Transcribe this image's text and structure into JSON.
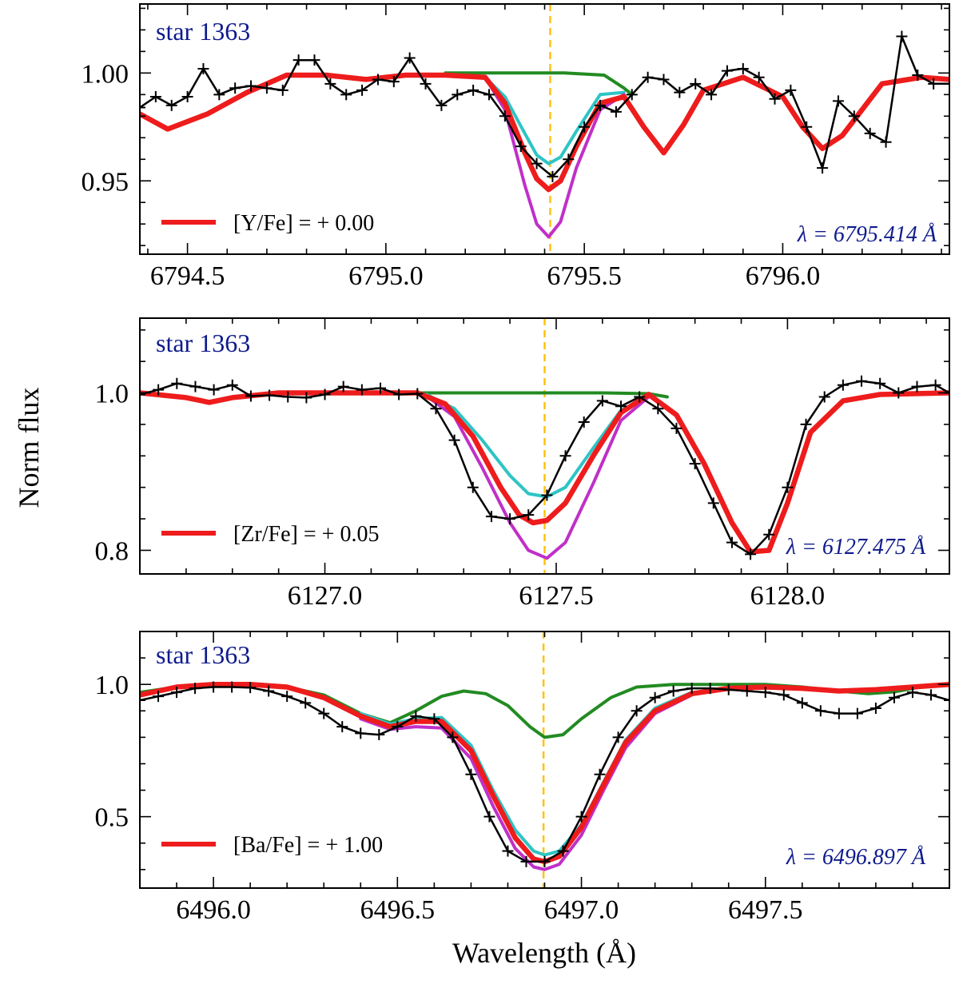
{
  "figure": {
    "ylabel": "Norm flux",
    "xlabel": "Wavelength (Å)"
  },
  "legend_colors": {
    "observed": "#000000",
    "best_fit": "#ee1c1c",
    "no_element": "#228b22",
    "lower": "#2ec4c4",
    "higher": "#c030c8",
    "line_marker": "#ffc20e"
  },
  "chart_data": [
    {
      "type": "line",
      "title": "star 1363",
      "element": "Y",
      "legend": "[Y/Fe] = + 0.00",
      "line_label": "λ = 6795.414 Å",
      "line_center": 6795.414,
      "xlim": [
        6794.38,
        6796.42
      ],
      "ylim": [
        0.916,
        1.032
      ],
      "xticks": [
        6794.5,
        6795.0,
        6795.5,
        6796.0
      ],
      "xtick_labels": [
        "6794.5",
        "6795.0",
        "6795.5",
        "6796.0"
      ],
      "yticks": [
        0.95,
        1.0
      ],
      "ytick_labels": [
        "0.95",
        "1.00"
      ],
      "series": [
        {
          "name": "observed",
          "x": [
            6794.38,
            6794.42,
            6794.46,
            6794.5,
            6794.54,
            6794.58,
            6794.62,
            6794.66,
            6794.7,
            6794.74,
            6794.78,
            6794.82,
            6794.86,
            6794.9,
            6794.94,
            6794.98,
            6795.02,
            6795.06,
            6795.1,
            6795.14,
            6795.18,
            6795.22,
            6795.26,
            6795.3,
            6795.34,
            6795.38,
            6795.42,
            6795.46,
            6795.5,
            6795.54,
            6795.58,
            6795.62,
            6795.66,
            6795.7,
            6795.74,
            6795.78,
            6795.82,
            6795.86,
            6795.9,
            6795.94,
            6795.98,
            6796.02,
            6796.06,
            6796.1,
            6796.14,
            6796.18,
            6796.22,
            6796.26,
            6796.3,
            6796.34,
            6796.38,
            6796.42
          ],
          "y": [
            0.984,
            0.989,
            0.985,
            0.989,
            1.002,
            0.99,
            0.993,
            0.994,
            0.993,
            0.992,
            1.006,
            1.006,
            0.995,
            0.99,
            0.992,
            0.997,
            0.996,
            1.007,
            0.995,
            0.985,
            0.99,
            0.992,
            0.99,
            0.98,
            0.966,
            0.958,
            0.952,
            0.96,
            0.975,
            0.985,
            0.982,
            0.99,
            0.998,
            0.997,
            0.991,
            0.995,
            0.99,
            1.001,
            1.002,
            0.998,
            0.988,
            0.992,
            0.975,
            0.956,
            0.987,
            0.98,
            0.972,
            0.968,
            1.017,
            0.999,
            0.995,
            0.995
          ]
        },
        {
          "name": "best_fit",
          "x": [
            6794.38,
            6794.45,
            6794.55,
            6794.65,
            6794.75,
            6794.85,
            6794.95,
            6795.05,
            6795.15,
            6795.25,
            6795.3,
            6795.35,
            6795.38,
            6795.41,
            6795.44,
            6795.48,
            6795.54,
            6795.6,
            6795.65,
            6795.7,
            6795.75,
            6795.8,
            6795.9,
            6796.0,
            6796.05,
            6796.1,
            6796.15,
            6796.25,
            6796.35,
            6796.42
          ],
          "y": [
            0.981,
            0.974,
            0.981,
            0.991,
            0.999,
            0.999,
            0.997,
            0.999,
            0.999,
            0.998,
            0.986,
            0.963,
            0.951,
            0.946,
            0.95,
            0.966,
            0.986,
            0.989,
            0.975,
            0.963,
            0.976,
            0.992,
            0.998,
            0.989,
            0.975,
            0.965,
            0.971,
            0.995,
            0.998,
            0.997
          ]
        },
        {
          "name": "no_element",
          "x": [
            6795.15,
            6795.25,
            6795.35,
            6795.45,
            6795.55,
            6795.6,
            6795.62
          ],
          "y": [
            1.0,
            1.0,
            1.0,
            1.0,
            0.999,
            0.993,
            0.99
          ]
        },
        {
          "name": "lower",
          "x": [
            6795.15,
            6795.25,
            6795.3,
            6795.35,
            6795.38,
            6795.41,
            6795.44,
            6795.48,
            6795.54,
            6795.6
          ],
          "y": [
            0.999,
            0.998,
            0.989,
            0.972,
            0.962,
            0.958,
            0.961,
            0.973,
            0.99,
            0.991
          ]
        },
        {
          "name": "higher",
          "x": [
            6795.15,
            6795.25,
            6795.3,
            6795.35,
            6795.38,
            6795.41,
            6795.44,
            6795.48,
            6795.54,
            6795.6
          ],
          "y": [
            0.999,
            0.998,
            0.983,
            0.948,
            0.93,
            0.924,
            0.931,
            0.956,
            0.983,
            0.99
          ]
        }
      ]
    },
    {
      "type": "line",
      "title": "star 1363",
      "element": "Zr",
      "legend": "[Zr/Fe] = + 0.05",
      "line_label": "λ = 6127.475 Å",
      "line_center": 6127.475,
      "xlim": [
        6126.6,
        6128.35
      ],
      "ylim": [
        0.77,
        1.095
      ],
      "xticks": [
        6127.0,
        6127.5,
        6128.0
      ],
      "xtick_labels": [
        "6127.0",
        "6127.5",
        "6128.0"
      ],
      "yticks": [
        0.8,
        1.0
      ],
      "ytick_labels": [
        "0.8",
        "1.0"
      ],
      "series": [
        {
          "name": "observed",
          "x": [
            6126.6,
            6126.64,
            6126.68,
            6126.72,
            6126.76,
            6126.8,
            6126.84,
            6126.88,
            6126.92,
            6126.96,
            6127.0,
            6127.04,
            6127.08,
            6127.12,
            6127.16,
            6127.2,
            6127.24,
            6127.28,
            6127.32,
            6127.36,
            6127.4,
            6127.44,
            6127.48,
            6127.52,
            6127.56,
            6127.6,
            6127.64,
            6127.68,
            6127.72,
            6127.76,
            6127.8,
            6127.84,
            6127.88,
            6127.92,
            6127.96,
            6128.0,
            6128.04,
            6128.08,
            6128.12,
            6128.16,
            6128.2,
            6128.24,
            6128.28,
            6128.32,
            6128.35
          ],
          "y": [
            0.998,
            1.004,
            1.012,
            1.008,
            1.004,
            1.01,
            0.996,
            0.997,
            0.995,
            0.994,
            0.998,
            1.008,
            1.004,
            1.006,
            0.998,
            0.999,
            0.98,
            0.94,
            0.88,
            0.843,
            0.84,
            0.845,
            0.87,
            0.92,
            0.963,
            0.99,
            0.983,
            0.995,
            0.98,
            0.955,
            0.91,
            0.86,
            0.81,
            0.795,
            0.82,
            0.88,
            0.96,
            0.995,
            1.01,
            1.015,
            1.012,
            1.0,
            1.008,
            1.01,
            1.0
          ]
        },
        {
          "name": "best_fit",
          "x": [
            6126.6,
            6126.7,
            6126.75,
            6126.8,
            6126.9,
            6127.0,
            6127.1,
            6127.2,
            6127.26,
            6127.32,
            6127.38,
            6127.42,
            6127.45,
            6127.48,
            6127.52,
            6127.58,
            6127.64,
            6127.7,
            6127.76,
            6127.82,
            6127.88,
            6127.92,
            6127.96,
            6128.0,
            6128.05,
            6128.12,
            6128.2,
            6128.35
          ],
          "y": [
            1.0,
            0.994,
            0.988,
            0.994,
            1.0,
            1.0,
            1.0,
            1.0,
            0.986,
            0.945,
            0.88,
            0.845,
            0.835,
            0.838,
            0.86,
            0.92,
            0.975,
            0.998,
            0.972,
            0.91,
            0.835,
            0.798,
            0.8,
            0.86,
            0.95,
            0.99,
            0.998,
            1.0
          ]
        },
        {
          "name": "no_element",
          "x": [
            6127.2,
            6127.3,
            6127.4,
            6127.5,
            6127.6,
            6127.7,
            6127.74
          ],
          "y": [
            1.0,
            1.0,
            1.0,
            1.0,
            1.0,
            0.999,
            0.995
          ]
        },
        {
          "name": "lower",
          "x": [
            6127.22,
            6127.28,
            6127.34,
            6127.4,
            6127.44,
            6127.48,
            6127.52,
            6127.58,
            6127.64,
            6127.7
          ],
          "y": [
            0.998,
            0.98,
            0.94,
            0.895,
            0.872,
            0.868,
            0.88,
            0.93,
            0.978,
            0.995
          ]
        },
        {
          "name": "higher",
          "x": [
            6127.22,
            6127.28,
            6127.34,
            6127.4,
            6127.44,
            6127.48,
            6127.52,
            6127.58,
            6127.64,
            6127.7
          ],
          "y": [
            0.996,
            0.97,
            0.905,
            0.835,
            0.8,
            0.79,
            0.81,
            0.885,
            0.965,
            0.995
          ]
        }
      ]
    },
    {
      "type": "line",
      "title": "star 1363",
      "element": "Ba",
      "legend": "[Ba/Fe] = + 1.00",
      "line_label": "λ = 6496.897 Å",
      "line_center": 6496.897,
      "xlim": [
        6495.8,
        6498.0
      ],
      "ylim": [
        0.23,
        1.2
      ],
      "xticks": [
        6496.0,
        6496.5,
        6497.0,
        6497.5
      ],
      "xtick_labels": [
        "6496.0",
        "6496.5",
        "6497.0",
        "6497.5"
      ],
      "yticks": [
        0.5,
        1.0
      ],
      "ytick_labels": [
        "0.5",
        "1.0"
      ],
      "series": [
        {
          "name": "observed",
          "x": [
            6495.8,
            6495.85,
            6495.9,
            6495.95,
            6496.0,
            6496.05,
            6496.1,
            6496.15,
            6496.2,
            6496.25,
            6496.3,
            6496.35,
            6496.4,
            6496.45,
            6496.5,
            6496.55,
            6496.6,
            6496.65,
            6496.7,
            6496.75,
            6496.8,
            6496.85,
            6496.9,
            6496.95,
            6497.0,
            6497.05,
            6497.1,
            6497.15,
            6497.2,
            6497.25,
            6497.3,
            6497.35,
            6497.4,
            6497.45,
            6497.5,
            6497.55,
            6497.6,
            6497.65,
            6497.7,
            6497.75,
            6497.8,
            6497.85,
            6497.9,
            6497.95,
            6498.0
          ],
          "y": [
            0.94,
            0.955,
            0.97,
            0.985,
            0.99,
            0.99,
            0.988,
            0.975,
            0.955,
            0.93,
            0.89,
            0.84,
            0.815,
            0.81,
            0.84,
            0.88,
            0.87,
            0.8,
            0.66,
            0.5,
            0.37,
            0.33,
            0.33,
            0.37,
            0.5,
            0.66,
            0.8,
            0.9,
            0.95,
            0.975,
            0.985,
            0.985,
            0.98,
            0.975,
            0.97,
            0.96,
            0.93,
            0.9,
            0.89,
            0.89,
            0.91,
            0.95,
            0.97,
            0.96,
            0.94
          ]
        },
        {
          "name": "best_fit",
          "x": [
            6495.8,
            6495.9,
            6496.0,
            6496.1,
            6496.2,
            6496.3,
            6496.4,
            6496.48,
            6496.55,
            6496.62,
            6496.7,
            6496.76,
            6496.82,
            6496.87,
            6496.9,
            6496.94,
            6497.0,
            6497.06,
            6497.12,
            6497.2,
            6497.3,
            6497.4,
            6497.5,
            6497.6,
            6497.7,
            6497.8,
            6497.9,
            6498.0
          ],
          "y": [
            0.96,
            0.99,
            1.0,
            1.0,
            0.99,
            0.95,
            0.88,
            0.84,
            0.86,
            0.86,
            0.75,
            0.58,
            0.42,
            0.34,
            0.33,
            0.35,
            0.46,
            0.62,
            0.78,
            0.9,
            0.965,
            0.985,
            0.99,
            0.985,
            0.975,
            0.98,
            0.99,
            1.0
          ]
        },
        {
          "name": "no_element",
          "x": [
            6495.8,
            6495.9,
            6496.0,
            6496.1,
            6496.2,
            6496.3,
            6496.4,
            6496.48,
            6496.55,
            6496.62,
            6496.68,
            6496.74,
            6496.8,
            6496.86,
            6496.9,
            6496.95,
            6497.0,
            6497.08,
            6497.15,
            6497.25,
            6497.35,
            6497.5,
            6497.6,
            6497.7,
            6497.78,
            6497.85,
            6497.92,
            6498.0
          ],
          "y": [
            0.97,
            0.99,
            1.0,
            1.0,
            0.99,
            0.96,
            0.89,
            0.855,
            0.9,
            0.955,
            0.975,
            0.965,
            0.92,
            0.84,
            0.8,
            0.81,
            0.87,
            0.95,
            0.99,
            1.0,
            1.0,
            1.0,
            0.99,
            0.975,
            0.965,
            0.972,
            0.99,
            1.0
          ]
        },
        {
          "name": "lower",
          "x": [
            6496.4,
            6496.48,
            6496.55,
            6496.62,
            6496.7,
            6496.76,
            6496.82,
            6496.87,
            6496.9,
            6496.94,
            6497.0,
            6497.06,
            6497.12,
            6497.2,
            6497.3
          ],
          "y": [
            0.89,
            0.85,
            0.87,
            0.875,
            0.77,
            0.6,
            0.45,
            0.37,
            0.355,
            0.37,
            0.47,
            0.63,
            0.79,
            0.91,
            0.97
          ]
        },
        {
          "name": "higher",
          "x": [
            6496.4,
            6496.48,
            6496.55,
            6496.62,
            6496.7,
            6496.76,
            6496.82,
            6496.87,
            6496.9,
            6496.94,
            6497.0,
            6497.06,
            6497.12,
            6497.2,
            6497.3
          ],
          "y": [
            0.87,
            0.83,
            0.84,
            0.835,
            0.72,
            0.54,
            0.38,
            0.31,
            0.3,
            0.32,
            0.43,
            0.6,
            0.76,
            0.89,
            0.96
          ]
        }
      ]
    }
  ]
}
